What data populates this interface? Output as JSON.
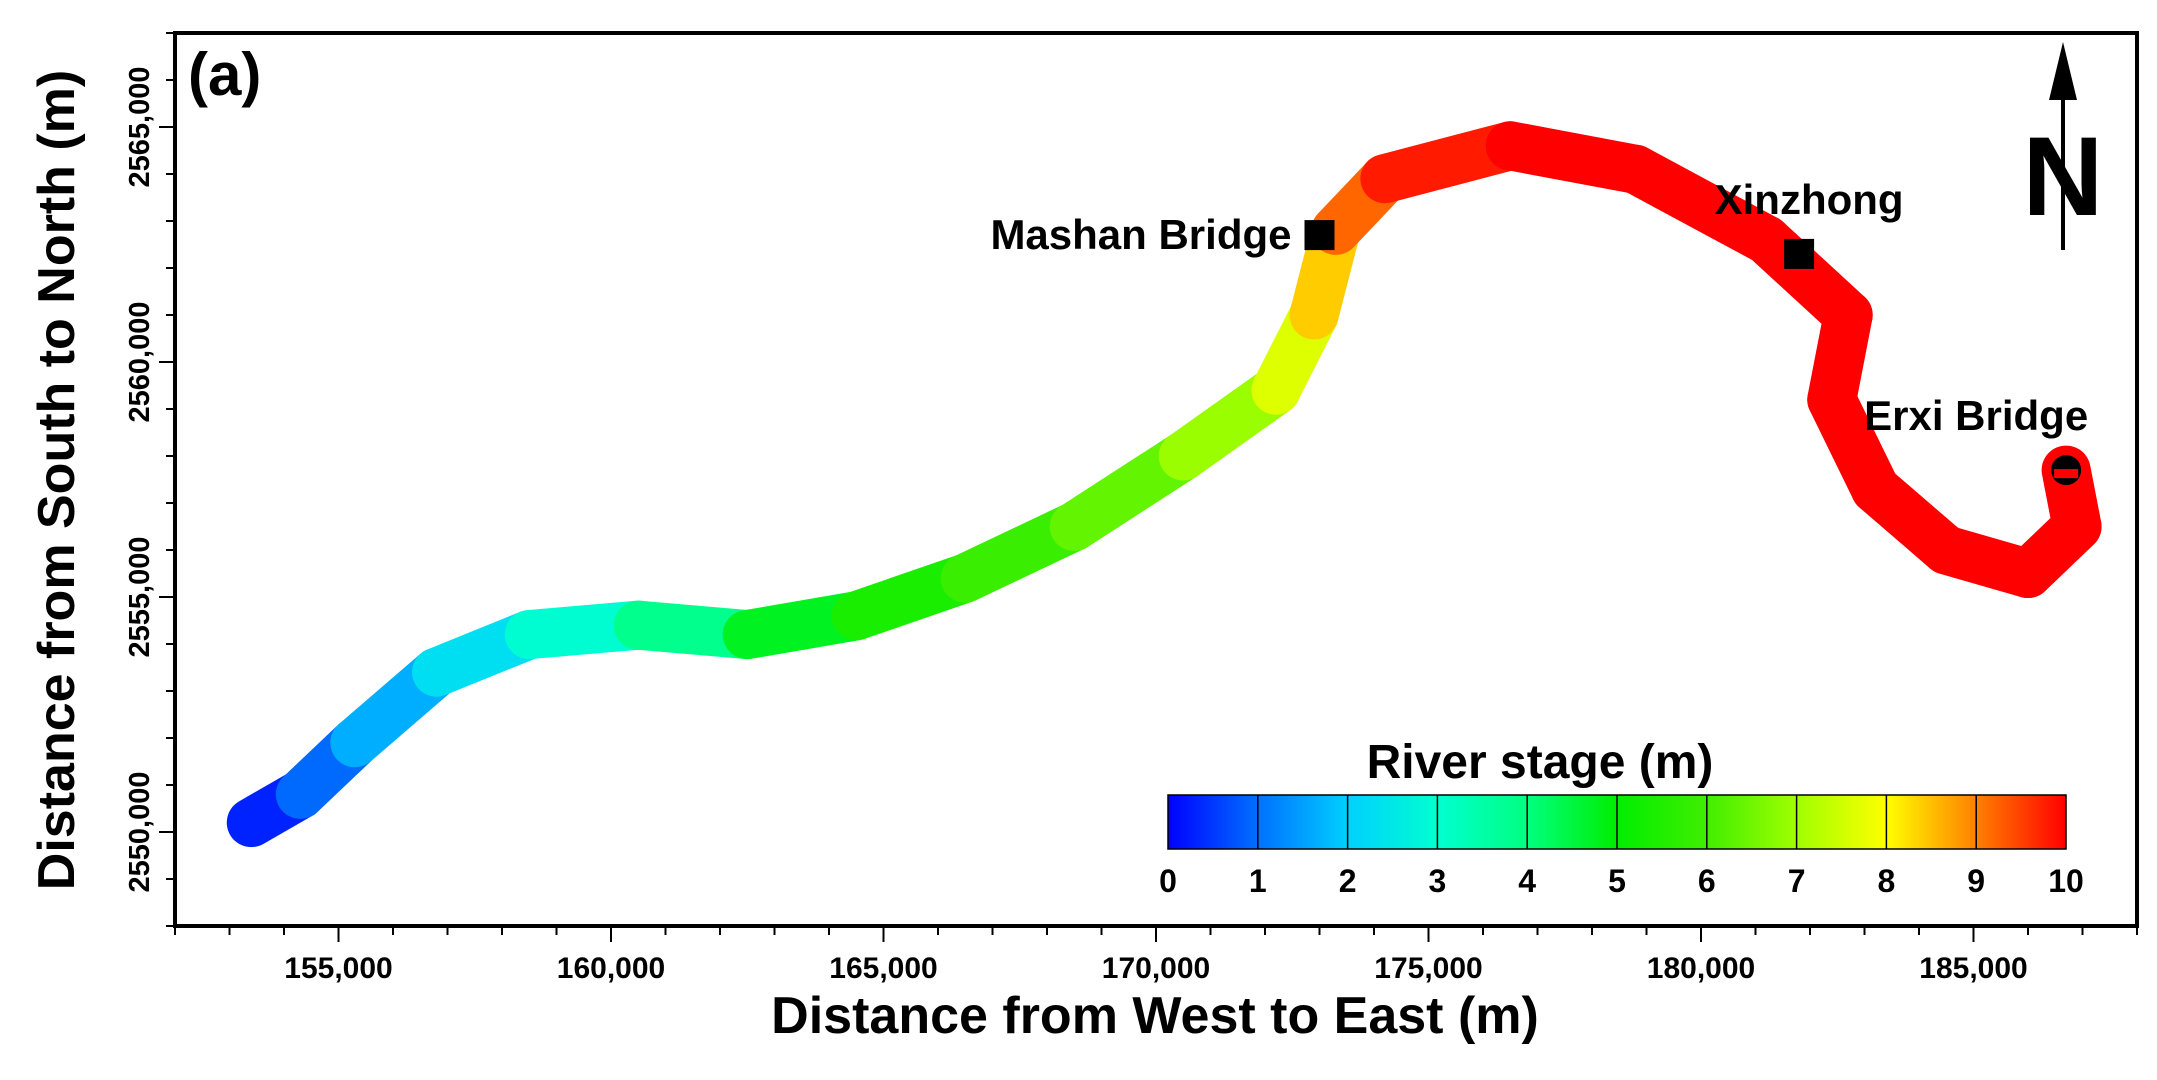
{
  "chart_data": {
    "type": "scatter",
    "panel_label": "(a)",
    "xlabel": "Distance from West to East (m)",
    "ylabel": "Distance from  South to North (m)",
    "xlim": [
      152000,
      188000
    ],
    "ylim": [
      2548000,
      2567000
    ],
    "x_ticks": [
      {
        "value": 155000,
        "label": "155,000"
      },
      {
        "value": 160000,
        "label": "160,000"
      },
      {
        "value": 165000,
        "label": "165,000"
      },
      {
        "value": 170000,
        "label": "170,000"
      },
      {
        "value": 175000,
        "label": "175,000"
      },
      {
        "value": 180000,
        "label": "180,000"
      },
      {
        "value": 185000,
        "label": "185,000"
      }
    ],
    "y_ticks": [
      {
        "value": 2550000,
        "label": "2550,000"
      },
      {
        "value": 2555000,
        "label": "2555,000"
      },
      {
        "value": 2560000,
        "label": "2560,000"
      },
      {
        "value": 2565000,
        "label": "2565,000"
      }
    ],
    "river_centerline": [
      {
        "x": 153400,
        "y": 2550200,
        "stage": 0.0
      },
      {
        "x": 154300,
        "y": 2550800,
        "stage": 0.6
      },
      {
        "x": 155300,
        "y": 2551900,
        "stage": 1.3
      },
      {
        "x": 156800,
        "y": 2553400,
        "stage": 2.0
      },
      {
        "x": 158500,
        "y": 2554200,
        "stage": 2.6
      },
      {
        "x": 160500,
        "y": 2554400,
        "stage": 3.3
      },
      {
        "x": 162500,
        "y": 2554200,
        "stage": 4.4
      },
      {
        "x": 164500,
        "y": 2554600,
        "stage": 5.1
      },
      {
        "x": 166500,
        "y": 2555400,
        "stage": 5.7
      },
      {
        "x": 168500,
        "y": 2556500,
        "stage": 6.1
      },
      {
        "x": 170500,
        "y": 2558000,
        "stage": 6.6
      },
      {
        "x": 172200,
        "y": 2559400,
        "stage": 7.3
      },
      {
        "x": 172900,
        "y": 2561000,
        "stage": 8.0
      },
      {
        "x": 173300,
        "y": 2562800,
        "stage": 8.8
      },
      {
        "x": 174200,
        "y": 2563900,
        "stage": 9.6
      },
      {
        "x": 176500,
        "y": 2564600,
        "stage": 10.0
      },
      {
        "x": 178800,
        "y": 2564100,
        "stage": 10.0
      },
      {
        "x": 181200,
        "y": 2562600,
        "stage": 10.0
      },
      {
        "x": 182700,
        "y": 2561000,
        "stage": 10.0
      },
      {
        "x": 182400,
        "y": 2559200,
        "stage": 10.0
      },
      {
        "x": 183200,
        "y": 2557300,
        "stage": 10.0
      },
      {
        "x": 184500,
        "y": 2556000,
        "stage": 10.0
      },
      {
        "x": 186000,
        "y": 2555500,
        "stage": 10.0
      },
      {
        "x": 186900,
        "y": 2556500,
        "stage": 10.0
      },
      {
        "x": 186700,
        "y": 2557700,
        "stage": 10.0
      }
    ],
    "river_width_m": 900,
    "locations": [
      {
        "name": "Mashan Bridge",
        "x": 173000,
        "y": 2562700,
        "marker": "square"
      },
      {
        "name": "Xinzhong",
        "x": 181800,
        "y": 2562300,
        "marker": "square"
      },
      {
        "name": "Erxi Bridge",
        "x": 186700,
        "y": 2557700,
        "marker": "circle"
      }
    ],
    "north_arrow": {
      "label": "N"
    },
    "colorbar": {
      "title": "River stage (m)",
      "min": 0,
      "max": 10,
      "ticks": [
        "0",
        "1",
        "2",
        "3",
        "4",
        "5",
        "6",
        "7",
        "8",
        "9",
        "10"
      ],
      "colors": [
        "#0000ff",
        "#0070ff",
        "#00d0ff",
        "#00ffd0",
        "#00ff80",
        "#00ee00",
        "#40ee00",
        "#a0ff00",
        "#ffff00",
        "#ff8000",
        "#ff0000"
      ]
    },
    "grid": false,
    "legend_position": "bottom-right"
  }
}
